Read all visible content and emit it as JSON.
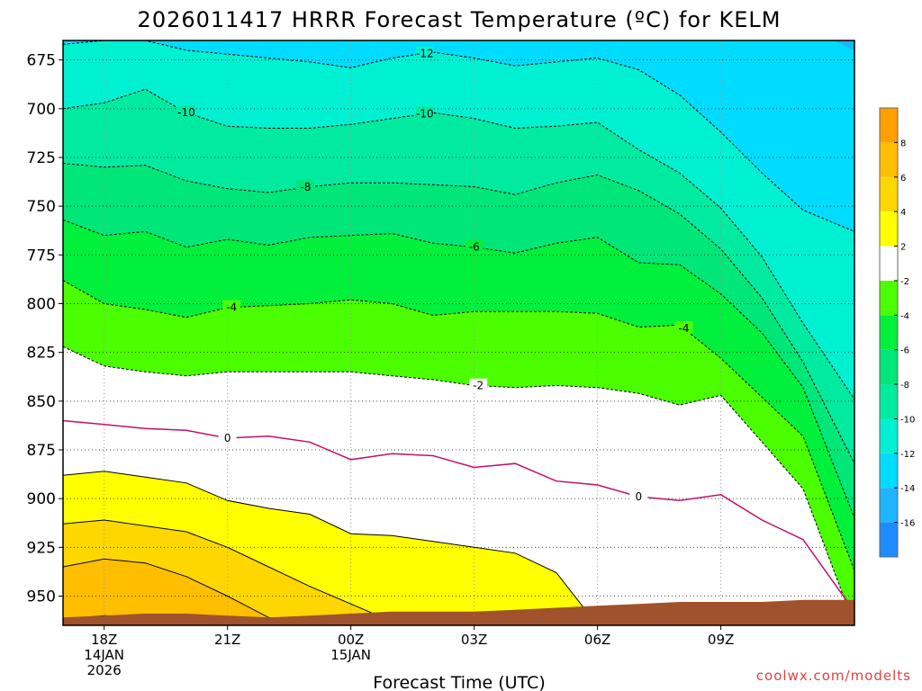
{
  "title": "2026011417 HRRR Forecast Temperature (ºC) for KELM",
  "credit": "coolwx.com/modelts",
  "chart_data": {
    "type": "contour",
    "title": "2026011417 HRRR Forecast Temperature (ºC) for KELM",
    "xlabel": "Forecast Time (UTC)",
    "ylabel": "",
    "y_axis_reversed": true,
    "ylim": [
      965,
      665
    ],
    "xlim": [
      -1,
      18.25
    ],
    "y_ticks": [
      675,
      700,
      725,
      750,
      775,
      800,
      825,
      850,
      875,
      900,
      925,
      950
    ],
    "x_ticks": [
      {
        "t": 0,
        "lines": [
          "18Z",
          "14JAN",
          "2026"
        ]
      },
      {
        "t": 3,
        "lines": [
          "21Z"
        ]
      },
      {
        "t": 6,
        "lines": [
          "00Z",
          "15JAN"
        ]
      },
      {
        "t": 9,
        "lines": [
          "03Z"
        ]
      },
      {
        "t": 12,
        "lines": [
          "06Z"
        ]
      },
      {
        "t": 15,
        "lines": [
          "09Z"
        ]
      }
    ],
    "grid": true,
    "times": [
      -1,
      0,
      1,
      2,
      3,
      4,
      5,
      6,
      7,
      8,
      9,
      10,
      11,
      12,
      13,
      14,
      15,
      16,
      17,
      18.25
    ],
    "contours": [
      {
        "level": -12,
        "p": [
          667,
          665,
          665,
          670,
          672,
          674,
          676,
          679,
          674,
          671,
          674,
          678,
          676,
          674,
          680,
          693,
          712,
          733,
          752,
          763
        ]
      },
      {
        "level": -10,
        "p": [
          700,
          697,
          690,
          702,
          709,
          710,
          710,
          708,
          705,
          702,
          705,
          710,
          709,
          707,
          721,
          733,
          751,
          776,
          810,
          849
        ]
      },
      {
        "level": -8,
        "p": [
          728,
          730,
          729,
          737,
          741,
          743,
          740,
          738,
          738,
          739,
          740,
          744,
          738,
          734,
          742,
          754,
          772,
          797,
          830,
          882
        ]
      },
      {
        "level": -6,
        "p": [
          757,
          765,
          763,
          771,
          767,
          770,
          766,
          765,
          764,
          769,
          771,
          774,
          769,
          766,
          779,
          780,
          795,
          815,
          843,
          910
        ]
      },
      {
        "level": -4,
        "p": [
          788,
          800,
          803,
          807,
          802,
          801,
          800,
          798,
          800,
          806,
          804,
          804,
          804,
          805,
          812,
          811,
          828,
          848,
          868,
          937
        ]
      },
      {
        "level": -2,
        "p": [
          822,
          832,
          835,
          837,
          835,
          835,
          835,
          835,
          837,
          839,
          842,
          843,
          842,
          843,
          846,
          852,
          847,
          871,
          895,
          965
        ]
      },
      {
        "level": 0,
        "p": [
          860,
          862,
          864,
          865,
          869,
          868,
          871,
          880,
          877,
          878,
          884,
          882,
          891,
          893,
          899,
          901,
          898,
          911,
          921,
          958
        ]
      },
      {
        "level": 2,
        "p": [
          888,
          886,
          889,
          892,
          901,
          905,
          908,
          918,
          919,
          922,
          925,
          928,
          938,
          965,
          965,
          965,
          965,
          956,
          965,
          965
        ]
      },
      {
        "level": 4,
        "p": [
          913,
          911,
          914,
          917,
          925,
          935,
          945,
          954,
          963,
          965,
          965,
          965,
          965,
          965,
          965,
          965,
          965,
          965,
          965,
          965
        ]
      },
      {
        "level": 6,
        "p": [
          935,
          931,
          933,
          940,
          950,
          961,
          965,
          965,
          965,
          965,
          965,
          965,
          965,
          965,
          965,
          965,
          965,
          965,
          965,
          965
        ]
      },
      {
        "level": 8,
        "p": [
          962,
          960,
          961,
          965,
          965,
          965,
          965,
          965,
          965,
          965,
          965,
          965,
          965,
          965,
          965,
          965,
          965,
          965,
          965,
          965
        ]
      }
    ],
    "band_colors": [
      {
        "range": [
          -18,
          -16
        ],
        "color": "#1e8cff"
      },
      {
        "range": [
          -16,
          -14
        ],
        "color": "#1eb4ff"
      },
      {
        "range": [
          -14,
          -12
        ],
        "color": "#00dcff"
      },
      {
        "range": [
          -12,
          -10
        ],
        "color": "#00f0d2"
      },
      {
        "range": [
          -10,
          -8
        ],
        "color": "#00eaa0"
      },
      {
        "range": [
          -8,
          -6
        ],
        "color": "#00e678"
      },
      {
        "range": [
          -6,
          -4
        ],
        "color": "#00f03c"
      },
      {
        "range": [
          -4,
          -2
        ],
        "color": "#4bff00"
      },
      {
        "range": [
          -2,
          2
        ],
        "color": "#ffffff"
      },
      {
        "range": [
          2,
          4
        ],
        "color": "#ffff00"
      },
      {
        "range": [
          4,
          6
        ],
        "color": "#ffd700"
      },
      {
        "range": [
          6,
          8
        ],
        "color": "#ffbe00"
      },
      {
        "range": [
          8,
          10
        ],
        "color": "#ffa000"
      }
    ],
    "contour_labels": [
      {
        "t": 7.8,
        "level": -12,
        "text": "-12"
      },
      {
        "t": 2,
        "level": -10,
        "text": "-10"
      },
      {
        "t": 7.8,
        "level": -10,
        "text": "-10"
      },
      {
        "t": 4.9,
        "level": -8,
        "text": "-8"
      },
      {
        "t": 9,
        "level": -6,
        "text": "-6"
      },
      {
        "t": 3.1,
        "level": -4,
        "text": "-4"
      },
      {
        "t": 14.1,
        "level": -4,
        "text": "-4"
      },
      {
        "t": 9.1,
        "level": -2,
        "text": "-2"
      },
      {
        "t": 3,
        "level": 0,
        "text": "0"
      },
      {
        "t": 13,
        "level": 0,
        "text": "0"
      }
    ],
    "ground": {
      "color": "#a0522d",
      "p": [
        961,
        960,
        959,
        959,
        960,
        961,
        960,
        959,
        958,
        958,
        958,
        957,
        956,
        955,
        954,
        953,
        953,
        953,
        952,
        952
      ]
    },
    "colorbar": {
      "levels": [
        -18,
        -16,
        -14,
        -12,
        -10,
        -8,
        -6,
        -4,
        -2,
        2,
        4,
        6,
        8,
        10
      ],
      "labels": [
        "-16",
        "-14",
        "-12",
        "-10",
        "-8",
        "-6",
        "-4",
        "-2",
        "2",
        "4",
        "6",
        "8"
      ]
    }
  }
}
